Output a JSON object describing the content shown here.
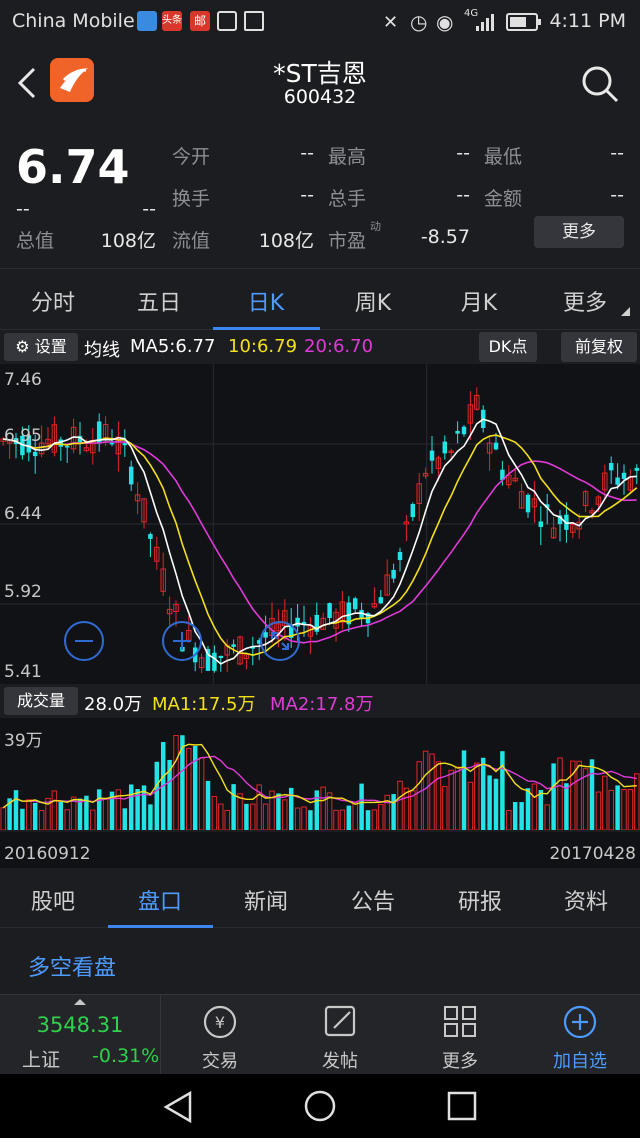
{
  "status": {
    "carrier": "China Mobile",
    "time": "4:11 PM",
    "notif1": "头条",
    "notif2": "邮",
    "signal": "4G"
  },
  "header": {
    "name": "*ST吉恩",
    "code": "600432"
  },
  "quote": {
    "price": "6.74",
    "change1": "--",
    "change2": "--",
    "fields": [
      {
        "label": "今开",
        "value": "--"
      },
      {
        "label": "最高",
        "value": "--"
      },
      {
        "label": "最低",
        "value": "--"
      },
      {
        "label": "换手",
        "value": "--"
      },
      {
        "label": "总手",
        "value": "--"
      },
      {
        "label": "金额",
        "value": "--"
      },
      {
        "label": "总值",
        "value": "108亿"
      },
      {
        "label": "流值",
        "value": "108亿"
      },
      {
        "label": "市盈",
        "value": "-8.57"
      }
    ],
    "pe_super": "动",
    "more": "更多"
  },
  "tabs": [
    "分时",
    "五日",
    "日K",
    "周K",
    "月K",
    "更多"
  ],
  "legend": {
    "settings": "设置",
    "ma_title": "均线",
    "ma5": "MA5:6.77",
    "ma10": "10:6.79",
    "ma20": "20:6.70",
    "dk": "DK点",
    "fq": "前复权"
  },
  "chart_data": {
    "type": "candlestick",
    "y_ticks": [
      "7.46",
      "6.95",
      "6.44",
      "5.92",
      "5.41"
    ],
    "ylim": [
      5.41,
      7.46
    ],
    "x_start": "20160912",
    "x_end": "20170428",
    "volume_axis_label": "39万",
    "volume_title": "成交量",
    "volume_value": "28.0万",
    "vol_ma1": "MA1:17.5万",
    "vol_ma2": "MA2:17.8万"
  },
  "info_tabs": [
    "股吧",
    "盘口",
    "新闻",
    "公告",
    "研报",
    "资料"
  ],
  "section_title": "多空看盘",
  "bottom": {
    "index_value": "3548.31",
    "index_name": "上证",
    "index_change": "-0.31%",
    "items": [
      "交易",
      "发帖",
      "更多",
      "加自选"
    ]
  },
  "colors": {
    "up": "#e0262a",
    "down": "#22e3e6",
    "ma5": "#ffffff",
    "ma10": "#f2e01a",
    "ma20": "#e03ad8",
    "accent": "#4d9bff"
  }
}
